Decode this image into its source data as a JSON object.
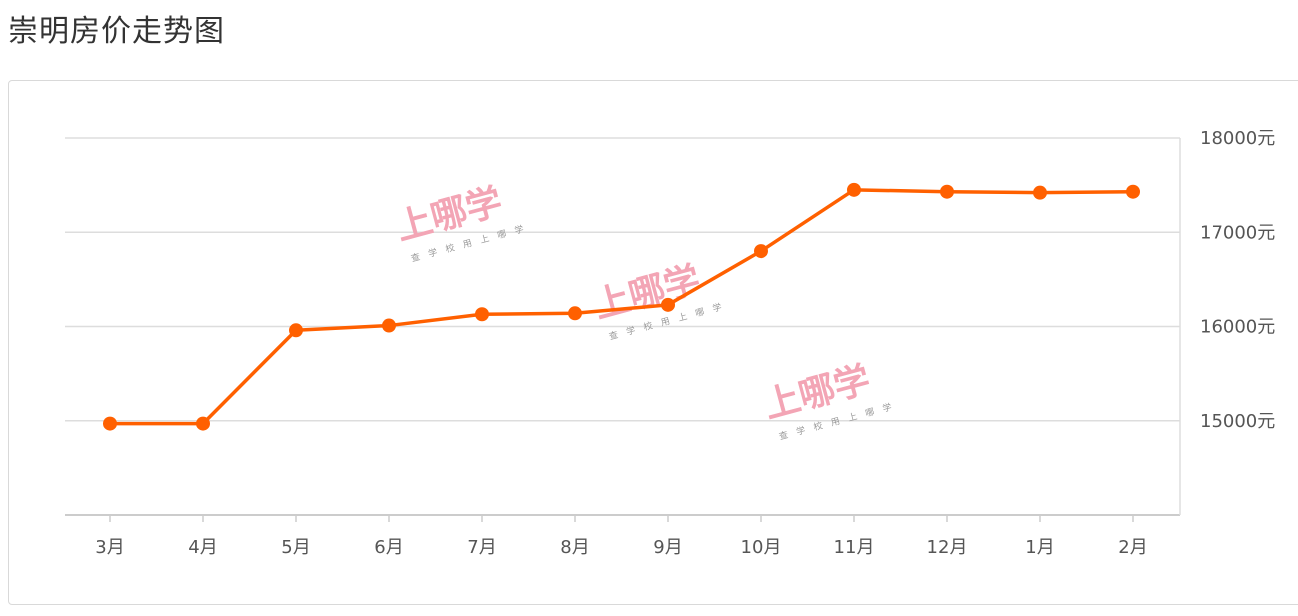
{
  "page": {
    "title": "崇明房价走势图"
  },
  "watermark": {
    "brand": "上哪学",
    "slogan": "查 学 校    用 上 哪 学"
  },
  "chart_data": {
    "type": "line",
    "categories": [
      "3月",
      "4月",
      "5月",
      "6月",
      "7月",
      "8月",
      "9月",
      "10月",
      "11月",
      "12月",
      "1月",
      "2月"
    ],
    "series": [
      {
        "values": [
          14970,
          14970,
          15960,
          16010,
          16130,
          16140,
          16230,
          16800,
          17450,
          17430,
          17420,
          17430
        ]
      }
    ],
    "y_ticks": [
      15000,
      16000,
      17000,
      18000
    ],
    "y_tick_labels": [
      "15000元",
      "16000元",
      "17000元",
      "18000元"
    ],
    "ylim": [
      14000,
      18000
    ],
    "y_axis_position": "right",
    "grid": true,
    "line_color": "#ff6000",
    "title": "",
    "xlabel": "",
    "ylabel": ""
  }
}
